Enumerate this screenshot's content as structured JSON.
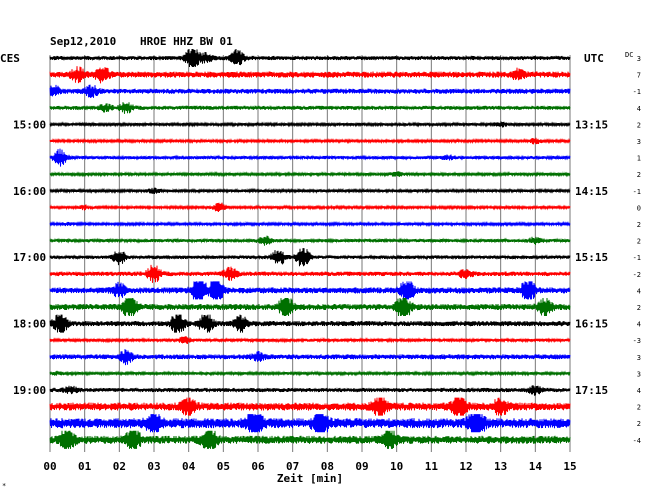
{
  "header": {
    "date": "Sep12,2010",
    "station": "HROE HHZ BW 01",
    "left_tz": "CES",
    "right_tz": "UTC",
    "dc_label": "DC"
  },
  "chart_data": {
    "type": "line",
    "title": "Sep12,2010    HROE HHZ BW 01",
    "xlabel": "Zeit [min]",
    "xlim": [
      0,
      15
    ],
    "x_ticks": [
      "00",
      "01",
      "02",
      "03",
      "04",
      "05",
      "06",
      "07",
      "08",
      "09",
      "10",
      "11",
      "12",
      "13",
      "14",
      "15"
    ],
    "grid": true,
    "left_time_labels": [
      {
        "trace": 4,
        "label": "15:00"
      },
      {
        "trace": 8,
        "label": "16:00"
      },
      {
        "trace": 12,
        "label": "17:00"
      },
      {
        "trace": 16,
        "label": "18:00"
      },
      {
        "trace": 20,
        "label": "19:00"
      }
    ],
    "right_time_labels": [
      {
        "trace": 4,
        "label": "13:15"
      },
      {
        "trace": 8,
        "label": "14:15"
      },
      {
        "trace": 12,
        "label": "15:15"
      },
      {
        "trace": 16,
        "label": "16:15"
      },
      {
        "trace": 20,
        "label": "17:15"
      }
    ],
    "trace_colors": [
      "#000000",
      "#ff0000",
      "#0000ff",
      "#007000"
    ],
    "dc_offsets": [
      "3",
      "7",
      "-1",
      "4",
      "2",
      "3",
      "1",
      "2",
      "-1",
      "0",
      "2",
      "2",
      "-1",
      "-2",
      "4",
      "2",
      "4",
      "-3",
      "3",
      "3",
      "4",
      "2",
      "2",
      "-4"
    ],
    "traces": [
      {
        "amp": 2,
        "events": [
          [
            4.1,
            6
          ],
          [
            5.4,
            4
          ],
          [
            4.5,
            2
          ]
        ]
      },
      {
        "amp": 3,
        "events": [
          [
            1.5,
            3
          ],
          [
            0.8,
            2
          ],
          [
            13.5,
            1.5
          ]
        ]
      },
      {
        "amp": 2.5,
        "events": [
          [
            1.2,
            2
          ],
          [
            0.1,
            2
          ]
        ]
      },
      {
        "amp": 2,
        "events": [
          [
            2.2,
            2.5
          ],
          [
            1.6,
            1.5
          ]
        ]
      },
      {
        "amp": 1.3,
        "events": [
          [
            13.0,
            1.5
          ]
        ]
      },
      {
        "amp": 1.2,
        "events": [
          [
            14.0,
            2
          ]
        ]
      },
      {
        "amp": 1.6,
        "events": [
          [
            0.3,
            5
          ],
          [
            11.5,
            1
          ]
        ]
      },
      {
        "amp": 1.3,
        "events": [
          [
            10.0,
            1.5
          ]
        ]
      },
      {
        "amp": 1.4,
        "events": [
          [
            3.0,
            1.5
          ]
        ]
      },
      {
        "amp": 1.2,
        "events": [
          [
            4.9,
            3.5
          ],
          [
            1.0,
            1.5
          ]
        ]
      },
      {
        "amp": 1.2,
        "events": [
          [
            0.5,
            1
          ]
        ]
      },
      {
        "amp": 1.6,
        "events": [
          [
            6.2,
            2.5
          ],
          [
            14.0,
            2
          ]
        ]
      },
      {
        "amp": 1.7,
        "events": [
          [
            2.0,
            4
          ],
          [
            6.6,
            5
          ],
          [
            7.3,
            6
          ]
        ]
      },
      {
        "amp": 2.2,
        "events": [
          [
            3.0,
            4
          ],
          [
            5.2,
            2.5
          ],
          [
            12.0,
            2
          ]
        ]
      },
      {
        "amp": 3,
        "events": [
          [
            4.3,
            5
          ],
          [
            4.8,
            5
          ],
          [
            10.3,
            4
          ],
          [
            13.8,
            4
          ],
          [
            2.0,
            2
          ]
        ]
      },
      {
        "amp": 3,
        "events": [
          [
            2.3,
            4
          ],
          [
            6.8,
            4
          ],
          [
            10.2,
            4.5
          ],
          [
            14.3,
            3
          ]
        ]
      },
      {
        "amp": 2.6,
        "events": [
          [
            0.3,
            4
          ],
          [
            3.7,
            5
          ],
          [
            4.5,
            4
          ],
          [
            5.5,
            3
          ]
        ]
      },
      {
        "amp": 1.5,
        "events": [
          [
            3.9,
            2
          ]
        ]
      },
      {
        "amp": 2.5,
        "events": [
          [
            2.2,
            2.5
          ],
          [
            6.0,
            1.5
          ]
        ]
      },
      {
        "amp": 1.3,
        "events": [
          [
            0.2,
            1
          ]
        ]
      },
      {
        "amp": 2,
        "events": [
          [
            14.0,
            2
          ],
          [
            0.6,
            1.5
          ]
        ]
      },
      {
        "amp": 4,
        "events": [
          [
            4.0,
            2
          ],
          [
            9.5,
            2.5
          ],
          [
            11.8,
            3
          ],
          [
            13.0,
            2
          ]
        ]
      },
      {
        "amp": 5,
        "events": [
          [
            5.9,
            3
          ],
          [
            7.8,
            3
          ],
          [
            12.3,
            4
          ],
          [
            3.0,
            2.5
          ]
        ]
      },
      {
        "amp": 4,
        "events": [
          [
            0.5,
            3
          ],
          [
            2.4,
            3
          ],
          [
            4.6,
            3.5
          ],
          [
            9.8,
            2.5
          ]
        ]
      }
    ]
  }
}
